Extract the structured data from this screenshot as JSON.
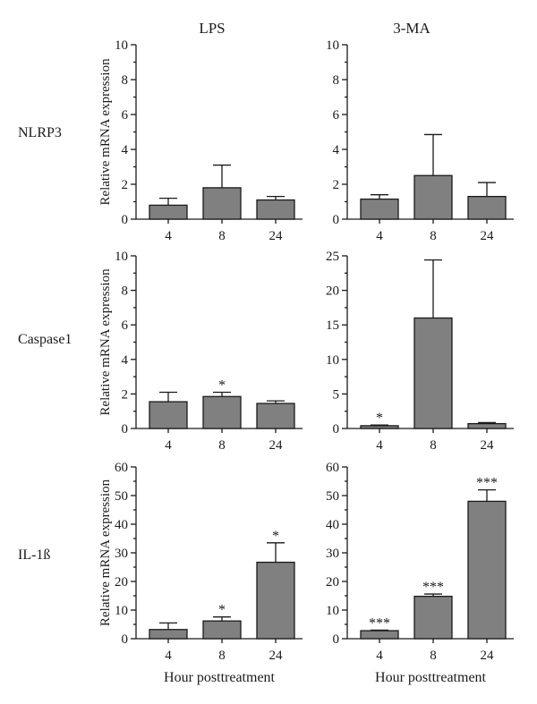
{
  "column_titles": [
    "LPS",
    "3-MA"
  ],
  "row_labels": [
    "NLRP3",
    "Caspase1",
    "IL-1ß"
  ],
  "xlabel": "Hour posttreatment",
  "ylabel": "Relative mRNA expression",
  "colors": {
    "bar_fill": "#808080",
    "stroke": "#1a1a1a"
  },
  "chart_data": [
    {
      "type": "bar",
      "panel": "NLRP3 / LPS",
      "categories": [
        "4",
        "8",
        "24"
      ],
      "values": [
        0.8,
        1.8,
        1.1
      ],
      "error": [
        0.4,
        1.3,
        0.2
      ],
      "significance": [
        "",
        "",
        ""
      ],
      "ylim": [
        0,
        10
      ],
      "yticks": [
        0,
        2,
        4,
        6,
        8,
        10
      ],
      "ylabel": "Relative mRNA expression",
      "xlabel": ""
    },
    {
      "type": "bar",
      "panel": "NLRP3 / 3-MA",
      "categories": [
        "4",
        "8",
        "24"
      ],
      "values": [
        1.15,
        2.5,
        1.3
      ],
      "error": [
        0.25,
        2.35,
        0.8
      ],
      "significance": [
        "",
        "",
        ""
      ],
      "ylim": [
        0,
        10
      ],
      "yticks": [
        0,
        2,
        4,
        6,
        8,
        10
      ],
      "ylabel": "",
      "xlabel": ""
    },
    {
      "type": "bar",
      "panel": "Caspase1 / LPS",
      "categories": [
        "4",
        "8",
        "24"
      ],
      "values": [
        1.55,
        1.85,
        1.45
      ],
      "error": [
        0.55,
        0.25,
        0.15
      ],
      "significance": [
        "",
        "*",
        ""
      ],
      "ylim": [
        0,
        10
      ],
      "yticks": [
        0,
        2,
        4,
        6,
        8,
        10
      ],
      "ylabel": "Relative mRNA expression",
      "xlabel": ""
    },
    {
      "type": "bar",
      "panel": "Caspase1 / 3-MA",
      "categories": [
        "4",
        "8",
        "24"
      ],
      "values": [
        0.4,
        16,
        0.7
      ],
      "error": [
        0.1,
        8.4,
        0.15
      ],
      "significance": [
        "*",
        "",
        ""
      ],
      "ylim": [
        0,
        25
      ],
      "yticks": [
        0,
        5,
        10,
        15,
        20,
        25
      ],
      "ylabel": "",
      "xlabel": ""
    },
    {
      "type": "bar",
      "panel": "IL-1ß / LPS",
      "categories": [
        "4",
        "8",
        "24"
      ],
      "values": [
        3.2,
        6.2,
        26.7
      ],
      "error": [
        2.3,
        1.4,
        6.8
      ],
      "significance": [
        "",
        "*",
        "*"
      ],
      "ylim": [
        0,
        60
      ],
      "yticks": [
        0,
        10,
        20,
        30,
        40,
        50,
        60
      ],
      "ylabel": "Relative mRNA expression",
      "xlabel": "Hour posttreatment"
    },
    {
      "type": "bar",
      "panel": "IL-1ß / 3-MA",
      "categories": [
        "4",
        "8",
        "24"
      ],
      "values": [
        2.8,
        14.8,
        48
      ],
      "error": [
        0.2,
        0.8,
        4.0
      ],
      "significance": [
        "***",
        "***",
        "***"
      ],
      "ylim": [
        0,
        60
      ],
      "yticks": [
        0,
        10,
        20,
        30,
        40,
        50,
        60
      ],
      "ylabel": "",
      "xlabel": "Hour posttreatment"
    }
  ]
}
